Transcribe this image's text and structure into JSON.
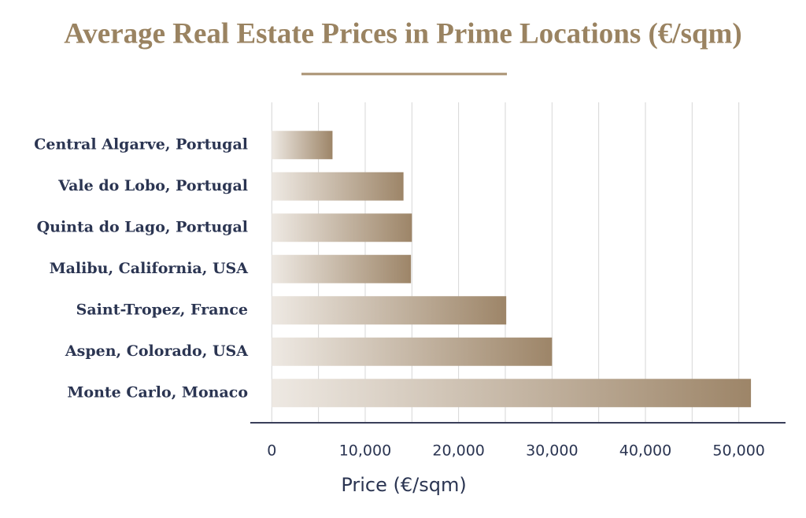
{
  "chart_data": {
    "type": "bar",
    "orientation": "horizontal",
    "title": "Average Real Estate Prices in Prime Locations (€/sqm)",
    "x_label": "Price (€/sqm)",
    "categories": [
      "Central Algarve, Portugal",
      "Vale do Lobo, Portugal",
      "Quinta do Lago, Portugal",
      "Malibu, California, USA",
      "Saint-Tropez, France",
      "Aspen, Colorado, USA",
      "Monte Carlo, Monaco"
    ],
    "values": [
      6500,
      14100,
      15000,
      14900,
      25100,
      30000,
      51300
    ],
    "color": "#9d8568",
    "xlim": [
      -2300,
      55000
    ],
    "xticks": [
      0,
      {
        "value": 10000,
        "label": "10,000"
      },
      {
        "value": 20000,
        "label": "20,000"
      },
      {
        "value": 30000,
        "label": "30,000"
      },
      {
        "value": 40000,
        "label": "40,000"
      },
      {
        "value": 50000,
        "label": "50,000"
      }
    ],
    "minor_xticks": [
      5000,
      15000,
      25000,
      35000,
      45000
    ],
    "grid": true
  }
}
